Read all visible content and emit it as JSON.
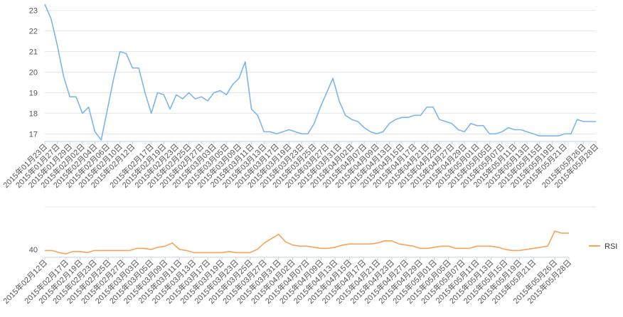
{
  "chart_data": [
    {
      "type": "line",
      "color": "#7cb5ec",
      "ylim": [
        16.7,
        23.3
      ],
      "yticks": [
        17,
        18,
        19,
        20,
        21,
        22,
        23
      ],
      "grid": true,
      "x": [
        "2015年01月23日",
        "2015年01月26日",
        "2015年01月27日",
        "2015年01月28日",
        "2015年01月29日",
        "2015年01月30日",
        "2015年02月02日",
        "2015年02月03日",
        "2015年02月04日",
        "2015年02月05日",
        "2015年02月06日",
        "2015年02月09日",
        "2015年02月10日",
        "2015年02月11日",
        "2015年02月12日",
        "2015年02月13日",
        "2015年02月16日",
        "2015年02月17日",
        "2015年02月18日",
        "2015年02月19日",
        "2015年02月20日",
        "2015年02月23日",
        "2015年02月24日",
        "2015年02月25日",
        "2015年02月26日",
        "2015年02月27日",
        "2015年03月02日",
        "2015年03月03日",
        "2015年03月04日",
        "2015年03月05日",
        "2015年03月06日",
        "2015年03月09日",
        "2015年03月10日",
        "2015年03月11日",
        "2015年03月12日",
        "2015年03月13日",
        "2015年03月16日",
        "2015年03月17日",
        "2015年03月18日",
        "2015年03月19日",
        "2015年03月20日",
        "2015年03月23日",
        "2015年03月24日",
        "2015年03月25日",
        "2015年03月26日",
        "2015年03月27日",
        "2015年03月30日",
        "2015年03月31日",
        "2015年04月01日",
        "2015年04月02日",
        "2015年04月03日",
        "2015年04月07日",
        "2015年04月08日",
        "2015年04月09日",
        "2015年04月10日",
        "2015年04月13日",
        "2015年04月14日",
        "2015年04月15日",
        "2015年04月16日",
        "2015年04月17日",
        "2015年04月20日",
        "2015年04月21日",
        "2015年04月22日",
        "2015年04月23日",
        "2015年04月24日",
        "2015年04月27日",
        "2015年04月28日",
        "2015年04月29日",
        "2015年04月30日",
        "2015年05月01日",
        "2015年05月04日",
        "2015年05月05日",
        "2015年05月06日",
        "2015年05月07日",
        "2015年05月08日",
        "2015年05月11日",
        "2015年05月12日",
        "2015年05月13日",
        "2015年05月14日",
        "2015年05月15日",
        "2015年05月18日",
        "2015年05月19日",
        "2015年05月20日",
        "2015年05月21日",
        "2015年05月22日",
        "2015年05月25日",
        "2015年05月26日",
        "2015年05月27日",
        "2015年05月28日"
      ],
      "xticklabels": [
        "2015年01月23日",
        "2015年01月27日",
        "2015年01月29日",
        "2015年02月02日",
        "2015年02月04日",
        "2015年02月06日",
        "2015年02月10日",
        "2015年02月12日",
        "2015年02月17日",
        "2015年02月19日",
        "2015年02月23日",
        "2015年02月25日",
        "2015年02月27日",
        "2015年03月03日",
        "2015年03月05日",
        "2015年03月09日",
        "2015年03月11日",
        "2015年03月13日",
        "2015年03月17日",
        "2015年03月19日",
        "2015年03月23日",
        "2015年03月25日",
        "2015年03月27日",
        "2015年03月31日",
        "2015年04月02日",
        "2015年04月07日",
        "2015年04月09日",
        "2015年04月13日",
        "2015年04月15日",
        "2015年04月17日",
        "2015年04月21日",
        "2015年04月23日",
        "2015年04月27日",
        "2015年04月29日",
        "2015年05月01日",
        "2015年05月05日",
        "2015年05月07日",
        "2015年05月11日",
        "2015年05月13日",
        "2015年05月15日",
        "2015年05月19日",
        "2015年05月21日",
        "2015年05月26日",
        "2015年05月28日"
      ],
      "values": [
        23.3,
        22.6,
        21.3,
        19.8,
        18.8,
        18.8,
        18.0,
        18.3,
        17.1,
        16.7,
        18.2,
        19.7,
        21.0,
        20.9,
        20.2,
        20.2,
        19.0,
        18.0,
        19.0,
        18.9,
        18.2,
        18.9,
        18.7,
        19.0,
        18.7,
        18.8,
        18.6,
        19.0,
        19.1,
        18.9,
        19.4,
        19.7,
        20.5,
        18.2,
        17.9,
        17.1,
        17.1,
        17.0,
        17.1,
        17.2,
        17.1,
        17.0,
        17.0,
        17.5,
        18.3,
        19.0,
        19.7,
        18.6,
        17.9,
        17.7,
        17.6,
        17.3,
        17.1,
        17.0,
        17.1,
        17.5,
        17.7,
        17.8,
        17.8,
        17.9,
        17.9,
        18.3,
        18.3,
        17.7,
        17.6,
        17.5,
        17.2,
        17.1,
        17.5,
        17.4,
        17.4,
        17.0,
        17.0,
        17.1,
        17.3,
        17.2,
        17.2,
        17.1,
        17.0,
        16.9,
        16.9,
        16.9,
        16.9,
        17.0,
        17.0,
        17.7,
        17.6,
        17.6,
        17.6
      ]
    },
    {
      "type": "line",
      "color": "#f7a35c",
      "ylim": [
        34,
        63
      ],
      "yticks": [
        40
      ],
      "grid": false,
      "legend": "right",
      "series": [
        {
          "name": "RSI"
        }
      ],
      "x": [
        "2015年02月12日",
        "2015年02月13日",
        "2015年02月16日",
        "2015年02月17日",
        "2015年02月18日",
        "2015年02月19日",
        "2015年02月20日",
        "2015年02月23日",
        "2015年02月24日",
        "2015年02月25日",
        "2015年02月26日",
        "2015年02月27日",
        "2015年03月02日",
        "2015年03月03日",
        "2015年03月04日",
        "2015年03月05日",
        "2015年03月06日",
        "2015年03月09日",
        "2015年03月10日",
        "2015年03月11日",
        "2015年03月12日",
        "2015年03月13日",
        "2015年03月16日",
        "2015年03月17日",
        "2015年03月18日",
        "2015年03月19日",
        "2015年03月20日",
        "2015年03月23日",
        "2015年03月24日",
        "2015年03月25日",
        "2015年03月26日",
        "2015年03月27日",
        "2015年03月30日",
        "2015年03月31日",
        "2015年04月01日",
        "2015年04月02日",
        "2015年04月03日",
        "2015年04月07日",
        "2015年04月08日",
        "2015年04月09日",
        "2015年04月10日",
        "2015年04月13日",
        "2015年04月14日",
        "2015年04月15日",
        "2015年04月16日",
        "2015年04月17日",
        "2015年04月20日",
        "2015年04月21日",
        "2015年04月22日",
        "2015年04月23日",
        "2015年04月24日",
        "2015年04月27日",
        "2015年04月28日",
        "2015年04月29日",
        "2015年04月30日",
        "2015年05月01日",
        "2015年05月04日",
        "2015年05月05日",
        "2015年05月06日",
        "2015年05月07日",
        "2015年05月08日",
        "2015年05月11日",
        "2015年05月12日",
        "2015年05月13日",
        "2015年05月14日",
        "2015年05月15日",
        "2015年05月18日",
        "2015年05月19日",
        "2015年05月20日",
        "2015年05月21日",
        "2015年05月22日",
        "2015年05月25日",
        "2015年05月26日",
        "2015年05月27日",
        "2015年05月28日"
      ],
      "xticklabels": [
        "2015年02月12日",
        "2015年02月17日",
        "2015年02月19日",
        "2015年02月23日",
        "2015年02月25日",
        "2015年02月27日",
        "2015年03月03日",
        "2015年03月05日",
        "2015年03月09日",
        "2015年03月11日",
        "2015年03月13日",
        "2015年03月17日",
        "2015年03月19日",
        "2015年03月23日",
        "2015年03月25日",
        "2015年03月27日",
        "2015年03月31日",
        "2015年04月02日",
        "2015年04月07日",
        "2015年04月09日",
        "2015年04月13日",
        "2015年04月15日",
        "2015年04月17日",
        "2015年04月21日",
        "2015年04月23日",
        "2015年04月27日",
        "2015年04月29日",
        "2015年05月01日",
        "2015年05月05日",
        "2015年05月07日",
        "2015年05月11日",
        "2015年05月13日",
        "2015年05月15日",
        "2015年05月19日",
        "2015年05月21日",
        "2015年05月26日",
        "2015年05月28日"
      ],
      "values": [
        39,
        39,
        37,
        36,
        38,
        38,
        37,
        39,
        39,
        39,
        39,
        39,
        39,
        41,
        41,
        40,
        42,
        43,
        46,
        40,
        39,
        37,
        37,
        37,
        37,
        37,
        38,
        37,
        37,
        37,
        40,
        46,
        50,
        54,
        47,
        44,
        43,
        43,
        42,
        41,
        41,
        42,
        44,
        45,
        45,
        45,
        45,
        46,
        48,
        48,
        45,
        44,
        43,
        41,
        41,
        42,
        43,
        43,
        41,
        41,
        41,
        43,
        43,
        43,
        42,
        40,
        39,
        39,
        40,
        41,
        42,
        43,
        57,
        55,
        55
      ]
    }
  ]
}
